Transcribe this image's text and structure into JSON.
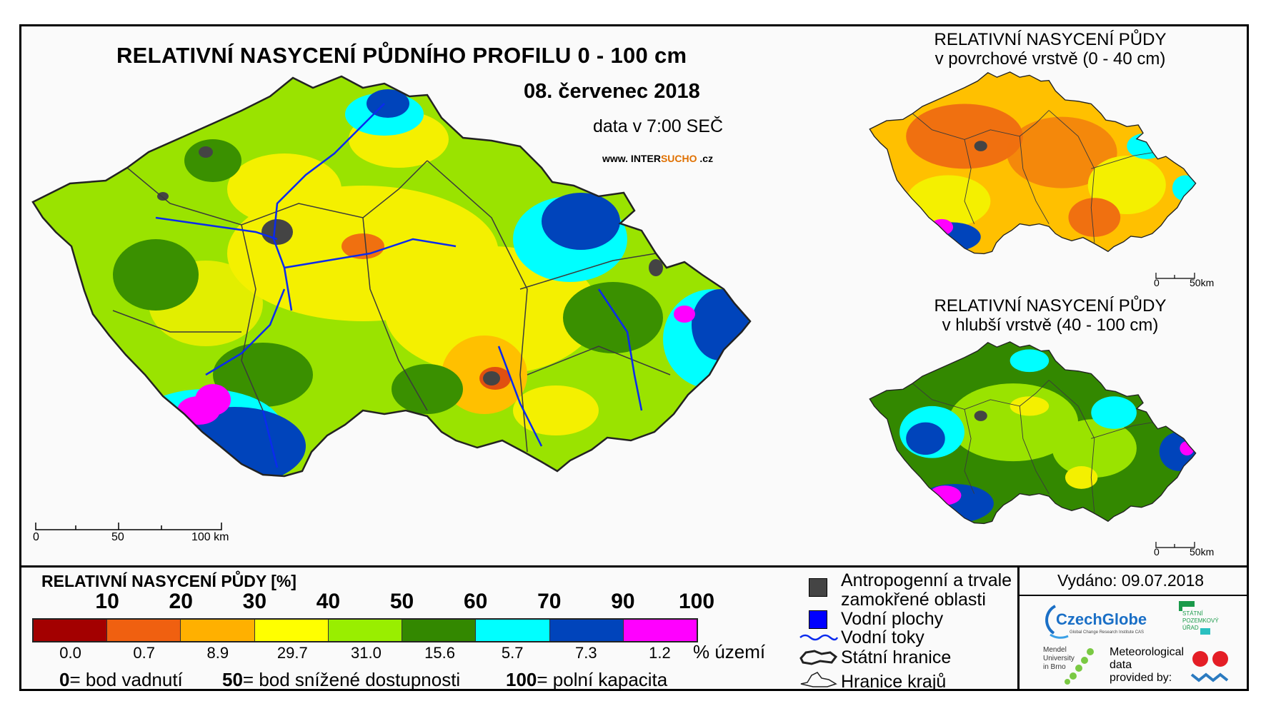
{
  "titles": {
    "main": "RELATIVNÍ NASYCENÍ PŮDNÍHO PROFILU 0 - 100 cm",
    "date": "08. červenec 2018",
    "time": "data v 7:00 SEČ",
    "website_prefix": "www. INTER",
    "website_accent": "SUCHO",
    "website_suffix": " .cz",
    "surface_line1": "RELATIVNÍ NASYCENÍ PŮDY",
    "surface_line2": "v povrchové vrstvě (0 - 40 cm)",
    "deep_line1": "RELATIVNÍ NASYCENÍ PŮDY",
    "deep_line2": "v hlubší vrstvě (40 - 100 cm)"
  },
  "scale_bars": {
    "main": [
      "0",
      "50",
      "100 km"
    ],
    "surface": [
      "0",
      "50km"
    ],
    "deep": [
      "0",
      "50km"
    ]
  },
  "legend": {
    "title": "RELATIVNÍ NASYCENÍ PŮDY [%]",
    "thresholds": [
      "10",
      "20",
      "30",
      "40",
      "50",
      "60",
      "70",
      "90",
      "100"
    ],
    "classes": [
      {
        "color": "#a30000",
        "share": "0.0"
      },
      {
        "color": "#f06010",
        "share": "0.7"
      },
      {
        "color": "#ffb000",
        "share": "8.9"
      },
      {
        "color": "#ffff00",
        "share": "29.7"
      },
      {
        "color": "#99ee00",
        "share": "31.0"
      },
      {
        "color": "#338800",
        "share": "15.6"
      },
      {
        "color": "#00ffff",
        "share": "5.7"
      },
      {
        "color": "#0044bb",
        "share": "7.3"
      },
      {
        "color": "#ff00ff",
        "share": "1.2"
      }
    ],
    "share_unit": "% území",
    "definitions": [
      {
        "value": "0",
        "text": "= bod vadnutí"
      },
      {
        "value": "50",
        "text": "= bod snížené dostupnosti"
      },
      {
        "value": "100",
        "text": "= polní kapacita"
      }
    ]
  },
  "symbols": {
    "anthropogenic_line1": "Antropogenní a trvale",
    "anthropogenic_line2": "zamokřené oblasti",
    "water_bodies": "Vodní plochy",
    "water_streams": "Vodní toky",
    "state_border": "Státní hranice",
    "region_border": "Hranice krajů"
  },
  "issued": "Vydáno: 09.07.2018",
  "logos": {
    "czechglobe": "CzechGlobe",
    "czechglobe_sub": "Global Change Research Institute CAS",
    "cuzk": "STÁTNÍ POZEMKOVÝ ÚŘAD",
    "mendel": "Mendel University in Brno",
    "meteo_line1": "Meteorological",
    "meteo_line2": "data",
    "meteo_line3": "provided by:"
  },
  "colors": {
    "anthropogenic": "#444444",
    "water_body": "#0000ff",
    "river": "#0a2aee",
    "region_border": "#3a3a3a"
  }
}
